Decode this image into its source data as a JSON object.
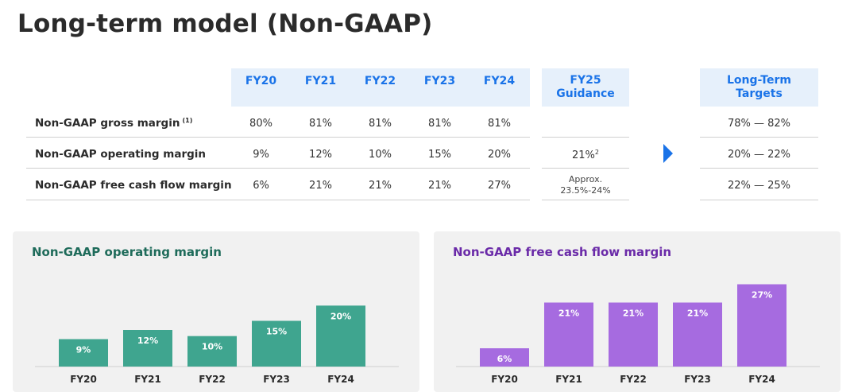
{
  "page": {
    "title": "Long-term model (Non-GAAP)"
  },
  "table": {
    "headers": [
      "FY20",
      "FY21",
      "FY22",
      "FY23",
      "FY24"
    ],
    "guidance_header": "FY25\nGuidance",
    "targets_header": "Long-Term\nTargets",
    "rows": [
      {
        "label": "Non-GAAP gross margin",
        "footnote": "(1)",
        "values": [
          "80%",
          "81%",
          "81%",
          "81%",
          "81%"
        ],
        "guidance": "",
        "guidance_sup": "",
        "target": "78% — 82%"
      },
      {
        "label": "Non-GAAP operating margin",
        "footnote": "",
        "values": [
          "9%",
          "12%",
          "10%",
          "15%",
          "20%"
        ],
        "guidance": "21%",
        "guidance_sup": "2",
        "target": "20% — 22%"
      },
      {
        "label": "Non-GAAP free cash flow margin",
        "footnote": "",
        "values": [
          "6%",
          "21%",
          "21%",
          "21%",
          "27%"
        ],
        "guidance": "Approx.\n23.5%-24%",
        "guidance_sup": "",
        "target": "22% — 25%"
      }
    ]
  },
  "colors": {
    "header_bg": "#e6f0fb",
    "header_text": "#1a73e8",
    "arrow": "#1a73e8",
    "operating_bar": "#3fa58f",
    "operating_title": "#1e6b5a",
    "fcf_bar": "#a66be0",
    "fcf_title": "#6a2aa8"
  },
  "chart_data": [
    {
      "type": "bar",
      "title": "Non-GAAP operating margin",
      "categories": [
        "FY20",
        "FY21",
        "FY22",
        "FY23",
        "FY24"
      ],
      "values": [
        9,
        12,
        10,
        15,
        20
      ],
      "labels": [
        "9%",
        "12%",
        "10%",
        "15%",
        "20%"
      ],
      "ylim": [
        0,
        30
      ],
      "grid": false
    },
    {
      "type": "bar",
      "title": "Non-GAAP free cash flow margin",
      "categories": [
        "FY20",
        "FY21",
        "FY22",
        "FY23",
        "FY24"
      ],
      "values": [
        6,
        21,
        21,
        21,
        27
      ],
      "labels": [
        "6%",
        "21%",
        "21%",
        "21%",
        "27%"
      ],
      "ylim": [
        0,
        30
      ],
      "grid": false
    }
  ]
}
